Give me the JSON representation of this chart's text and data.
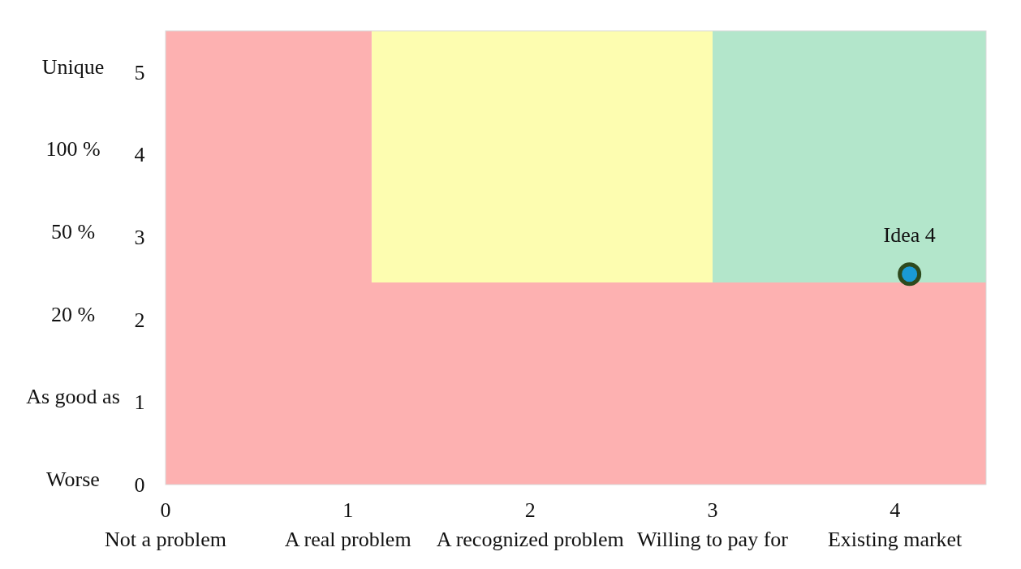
{
  "chart_data": {
    "type": "scatter",
    "x": [
      4.08
    ],
    "values": [
      2.55
    ],
    "color": "#1a9ad6",
    "marker": "circle",
    "xlim": [
      0,
      4.5
    ],
    "ylim": [
      0,
      5.5
    ],
    "xticks": [
      {
        "value": 0,
        "label": "0\nNot a problem"
      },
      {
        "value": 1,
        "label": "1\nA real problem"
      },
      {
        "value": 2,
        "label": "2\nA recognized problem"
      },
      {
        "value": 3,
        "label": "3\nWilling to pay for"
      },
      {
        "value": 4,
        "label": "4\nExisting market"
      }
    ],
    "yticks": [
      0,
      1,
      2,
      3,
      4,
      5
    ],
    "bands": [
      {
        "axis": "x",
        "from": 1.13,
        "to": 3.0,
        "color": "#fdfdb0"
      },
      {
        "axis": "x",
        "from": 3.0,
        "to": 4.5,
        "color": "#b3e6cb"
      },
      {
        "axis": "x",
        "from": 0,
        "to": 1.13,
        "color": "#fdb1b1"
      },
      {
        "axis": "y",
        "from": 0,
        "to": 2.45,
        "color": "#fdb1b1"
      }
    ],
    "annotations": [
      "Worse",
      "As good as",
      "20 %",
      "50 %",
      "100 %",
      "Unique",
      {
        "text": "Idea 4",
        "x": 4.08,
        "y": 2.55
      }
    ]
  }
}
